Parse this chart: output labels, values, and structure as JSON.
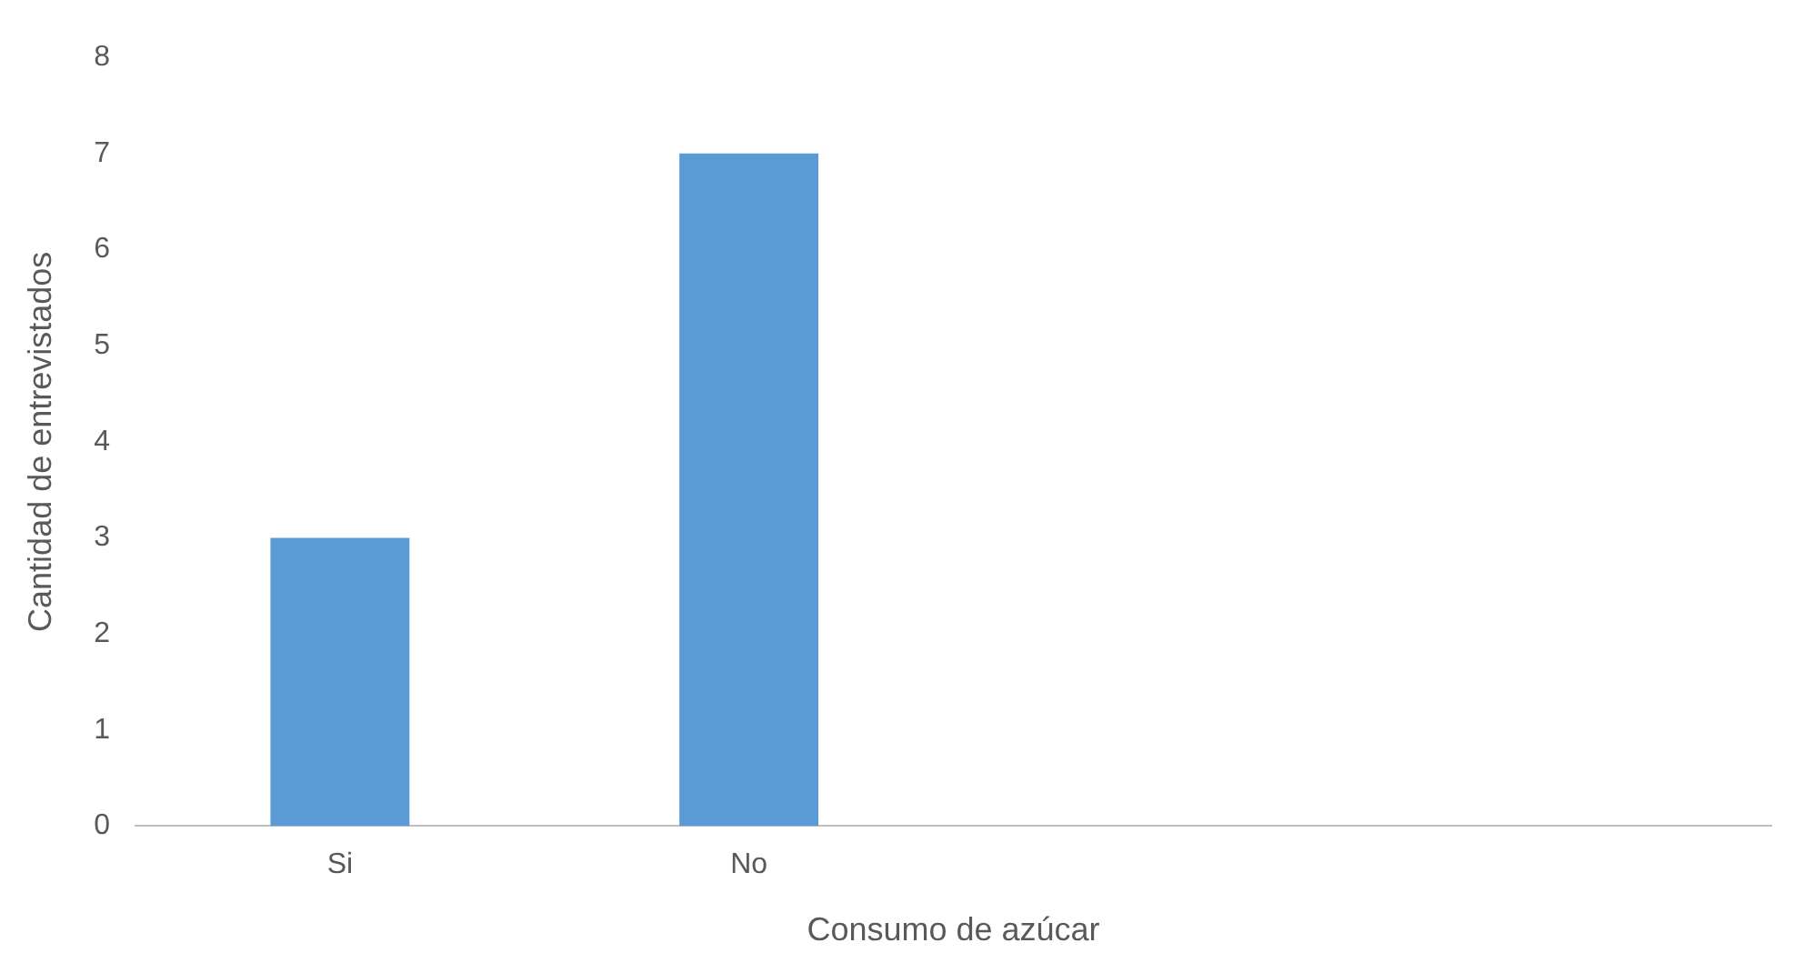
{
  "chart_data": {
    "type": "bar",
    "xlabel": "Consumo de azúcar",
    "ylabel": "Cantidad de entrevistados",
    "categories": [
      "Si",
      "No",
      null,
      null
    ],
    "values": [
      3,
      7,
      null,
      null
    ],
    "color": "#5b9bd5",
    "ylim": [
      0,
      8
    ],
    "yticks": [
      0,
      1,
      2,
      3,
      4,
      5,
      6,
      7,
      8
    ],
    "grid": false,
    "legend": false
  }
}
